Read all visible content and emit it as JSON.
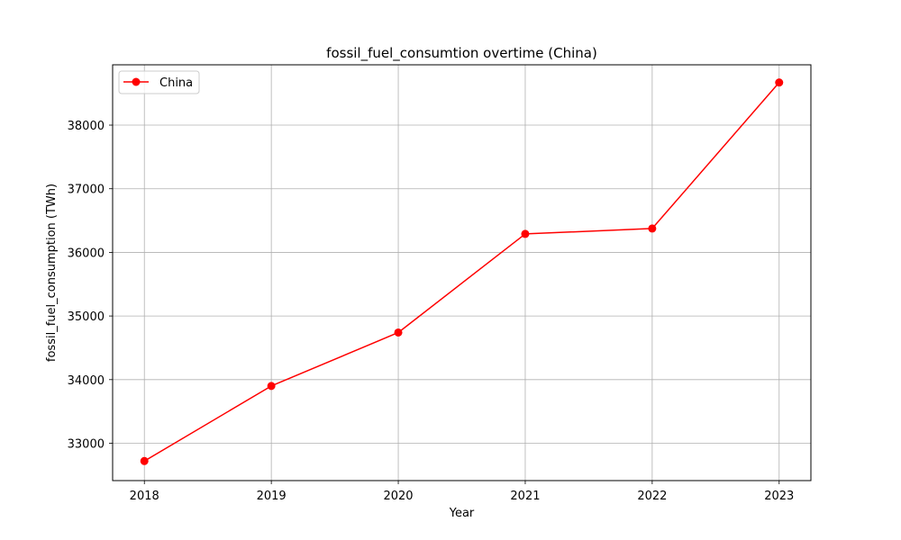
{
  "chart_data": {
    "type": "line",
    "title": "fossil_fuel_consumtion overtime (China)",
    "xlabel": "Year",
    "ylabel": "fossil_fuel_consumption (TWh)",
    "x": [
      2018,
      2019,
      2020,
      2021,
      2022,
      2023
    ],
    "x_ticks": [
      "2018",
      "2019",
      "2020",
      "2021",
      "2022",
      "2023"
    ],
    "xlim": [
      2017.75,
      2023.25
    ],
    "y_ticks": [
      33000,
      34000,
      35000,
      36000,
      37000,
      38000
    ],
    "y_tick_labels": [
      "33000",
      "34000",
      "35000",
      "36000",
      "37000",
      "38000"
    ],
    "ylim": [
      32413,
      38948
    ],
    "grid": true,
    "legend_position": "upper-left",
    "series": [
      {
        "name": "China",
        "color": "#ff0000",
        "marker": "circle",
        "values": [
          32720,
          33900,
          34740,
          36290,
          36375,
          38670
        ]
      }
    ]
  }
}
